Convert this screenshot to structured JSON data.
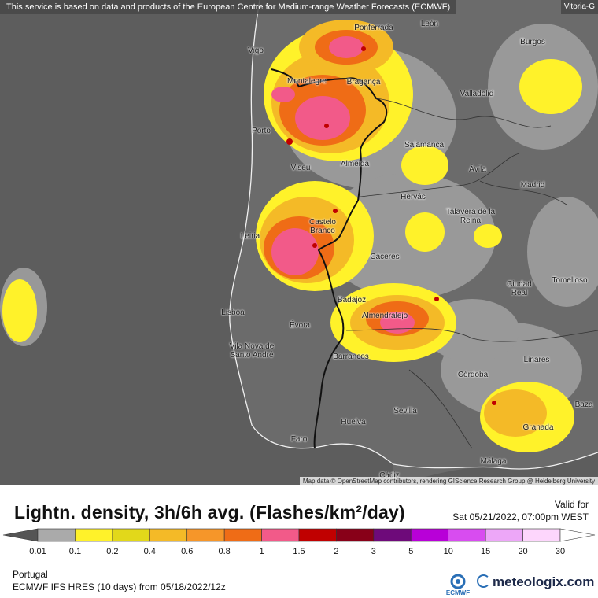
{
  "notice": "This service is based on data and products of the European Centre for Medium-range Weather Forecasts (ECMWF)",
  "corner_label": "Vitoria-G",
  "cities": [
    "Ponferrada",
    "León",
    "Burgos",
    "Vigo",
    "Montalegre",
    "Bragança",
    "Valladolid",
    "Porto",
    "Salamanca",
    "Viseu",
    "Almeida",
    "Ávila",
    "Madrid",
    "Hervás",
    "Talavera de la Reina",
    "Castelo Branco",
    "Leiria",
    "Cáceres",
    "Ciudad Real",
    "Tomelloso",
    "Badajoz",
    "Lisboa",
    "Almendralejo",
    "Évora",
    "Vila Nova de Santo André",
    "Barrancos",
    "Linares",
    "Córdoba",
    "Sevilla",
    "Baza",
    "Huelva",
    "Granada",
    "Faro",
    "Málaga",
    "Cádiz"
  ],
  "attribution": "Map data © OpenStreetMap contributors, rendering GIScience Research Group @ Heidelberg University",
  "title": "Lightn. density, 3h/6h avg. (Flashes/km²/day)",
  "valid_label": "Valid for",
  "valid_time": "Sat 05/21/2022, 07:00pm WEST",
  "legend": {
    "ticks": [
      "0.01",
      "0.1",
      "0.2",
      "0.4",
      "0.6",
      "0.8",
      "1",
      "1.5",
      "2",
      "3",
      "5",
      "10",
      "15",
      "20",
      "30"
    ],
    "colors": [
      "#555555",
      "#aaaaaa",
      "#fff22a",
      "#e2d81a",
      "#f4ba27",
      "#f69629",
      "#ef6c16",
      "#f25a89",
      "#c00000",
      "#880018",
      "#6e0a7a",
      "#b800d8",
      "#d84cf0",
      "#eda7f8",
      "#fdd6fc",
      "#ffffff"
    ]
  },
  "footer": {
    "region": "Portugal",
    "model": "ECMWF IFS HRES (10 days) from 05/18/2022/12z",
    "logo_text": "ECMWF",
    "brand": "meteologix.com"
  }
}
